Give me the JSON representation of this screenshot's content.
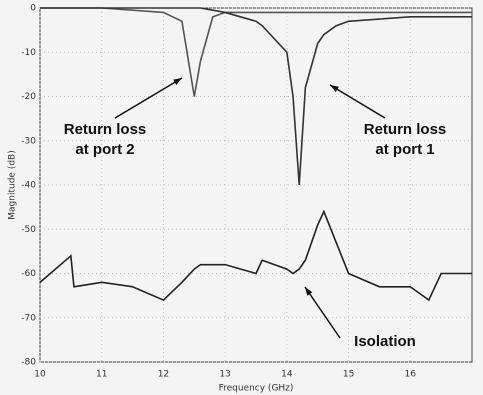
{
  "chart_data": {
    "type": "line",
    "x_label": "Frequency (GHz)",
    "y_label": "Magnitude (dB)",
    "x": [
      10,
      10.5,
      10.55,
      11,
      11.5,
      12,
      12.3,
      12.5,
      12.6,
      12.8,
      13,
      13.5,
      13.6,
      14,
      14.1,
      14.2,
      14.3,
      14.5,
      14.6,
      14.8,
      15,
      15.5,
      16,
      16.3,
      16.5,
      17
    ],
    "series": [
      {
        "color": "#555555",
        "values": [
          0,
          0,
          0,
          0,
          -0.5,
          -1,
          -3,
          -20,
          -12,
          -2,
          -1,
          -1,
          -1,
          -1,
          -1,
          -1,
          -1,
          -1,
          -1,
          -1,
          -1,
          -1,
          -1,
          -1,
          -1,
          -1
        ]
      },
      {
        "color": "#333333",
        "values": [
          0,
          0,
          0,
          0,
          0,
          0,
          0,
          0,
          0,
          -0.5,
          -1,
          -3,
          -4,
          -10,
          -20,
          -40,
          -18,
          -8,
          -6,
          -4,
          -3,
          -2.5,
          -2,
          -2,
          -2,
          -2
        ]
      },
      {
        "color": "#222222",
        "values": [
          -62,
          -56,
          -63,
          -62,
          -63,
          -66,
          -62,
          -59,
          -58,
          -58,
          -58,
          -60,
          -57,
          -59,
          -60,
          -59,
          -57,
          -49,
          -46,
          -53,
          -60,
          -63,
          -63,
          -66,
          -60,
          -60
        ]
      }
    ],
    "annotations": [
      [
        "Return loss",
        "at port 2"
      ],
      [
        "Return loss",
        "at port 1"
      ],
      [
        "Isolation"
      ]
    ],
    "xlim": [
      10,
      17
    ],
    "xticks": [
      10,
      11,
      12,
      13,
      14,
      15,
      16
    ],
    "ylim": [
      -80,
      0
    ],
    "yticks": [
      0,
      -10,
      -20,
      -30,
      -40,
      -50,
      -60,
      -70,
      -80
    ],
    "grid": true
  }
}
